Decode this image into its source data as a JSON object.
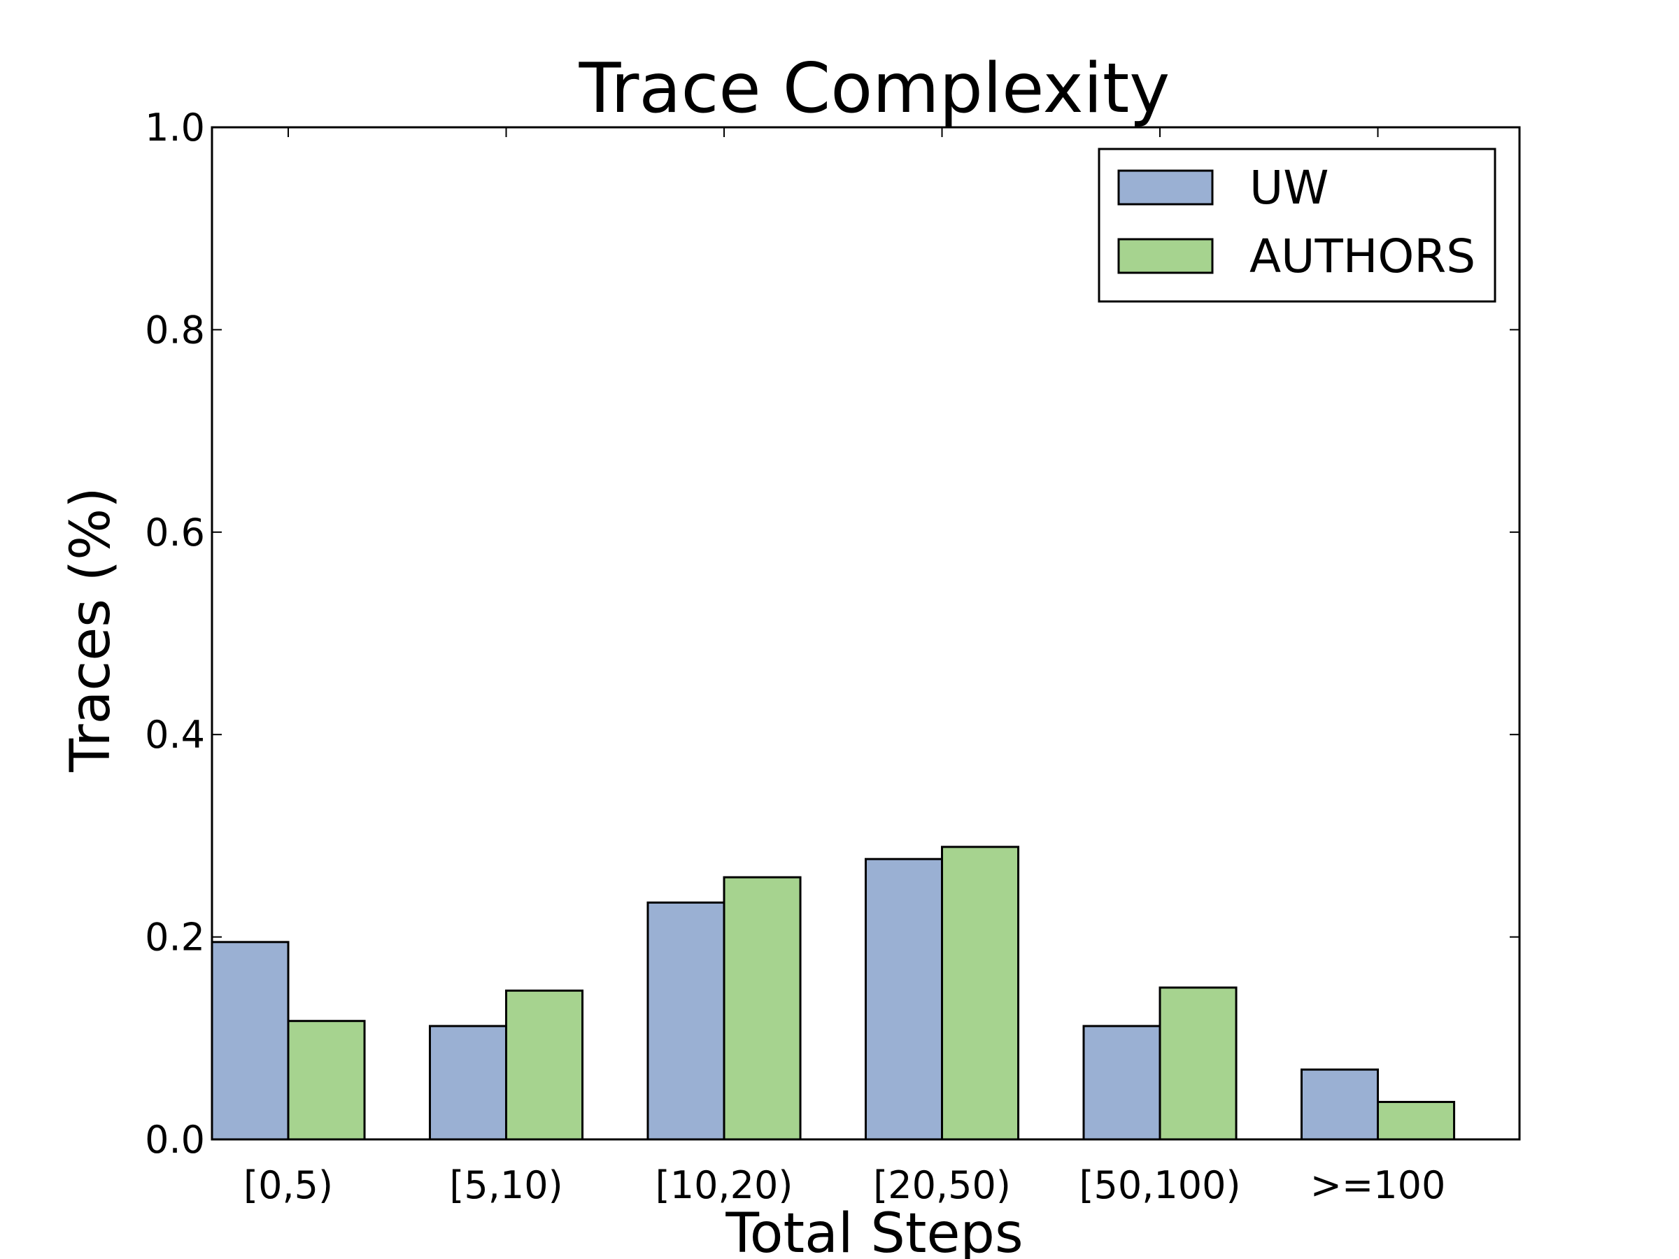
{
  "chart_data": {
    "type": "bar",
    "title": "Trace Complexity",
    "xlabel": "Total Steps",
    "ylabel": "Traces (%)",
    "categories": [
      "[0,5)",
      "[5,10)",
      "[10,20)",
      "[20,50)",
      "[50,100)",
      ">=100"
    ],
    "series": [
      {
        "name": "UW",
        "color": "#9ab0d3",
        "values": [
          0.195,
          0.112,
          0.234,
          0.277,
          0.112,
          0.069
        ]
      },
      {
        "name": "AUTHORS",
        "color": "#a6d38f",
        "values": [
          0.117,
          0.147,
          0.259,
          0.289,
          0.15,
          0.037
        ]
      }
    ],
    "ylim": [
      0,
      1.0
    ],
    "yticks": [
      "0.0",
      "0.2",
      "0.4",
      "0.6",
      "0.8",
      "1.0"
    ],
    "grid": false,
    "legend_position": "top-right"
  }
}
